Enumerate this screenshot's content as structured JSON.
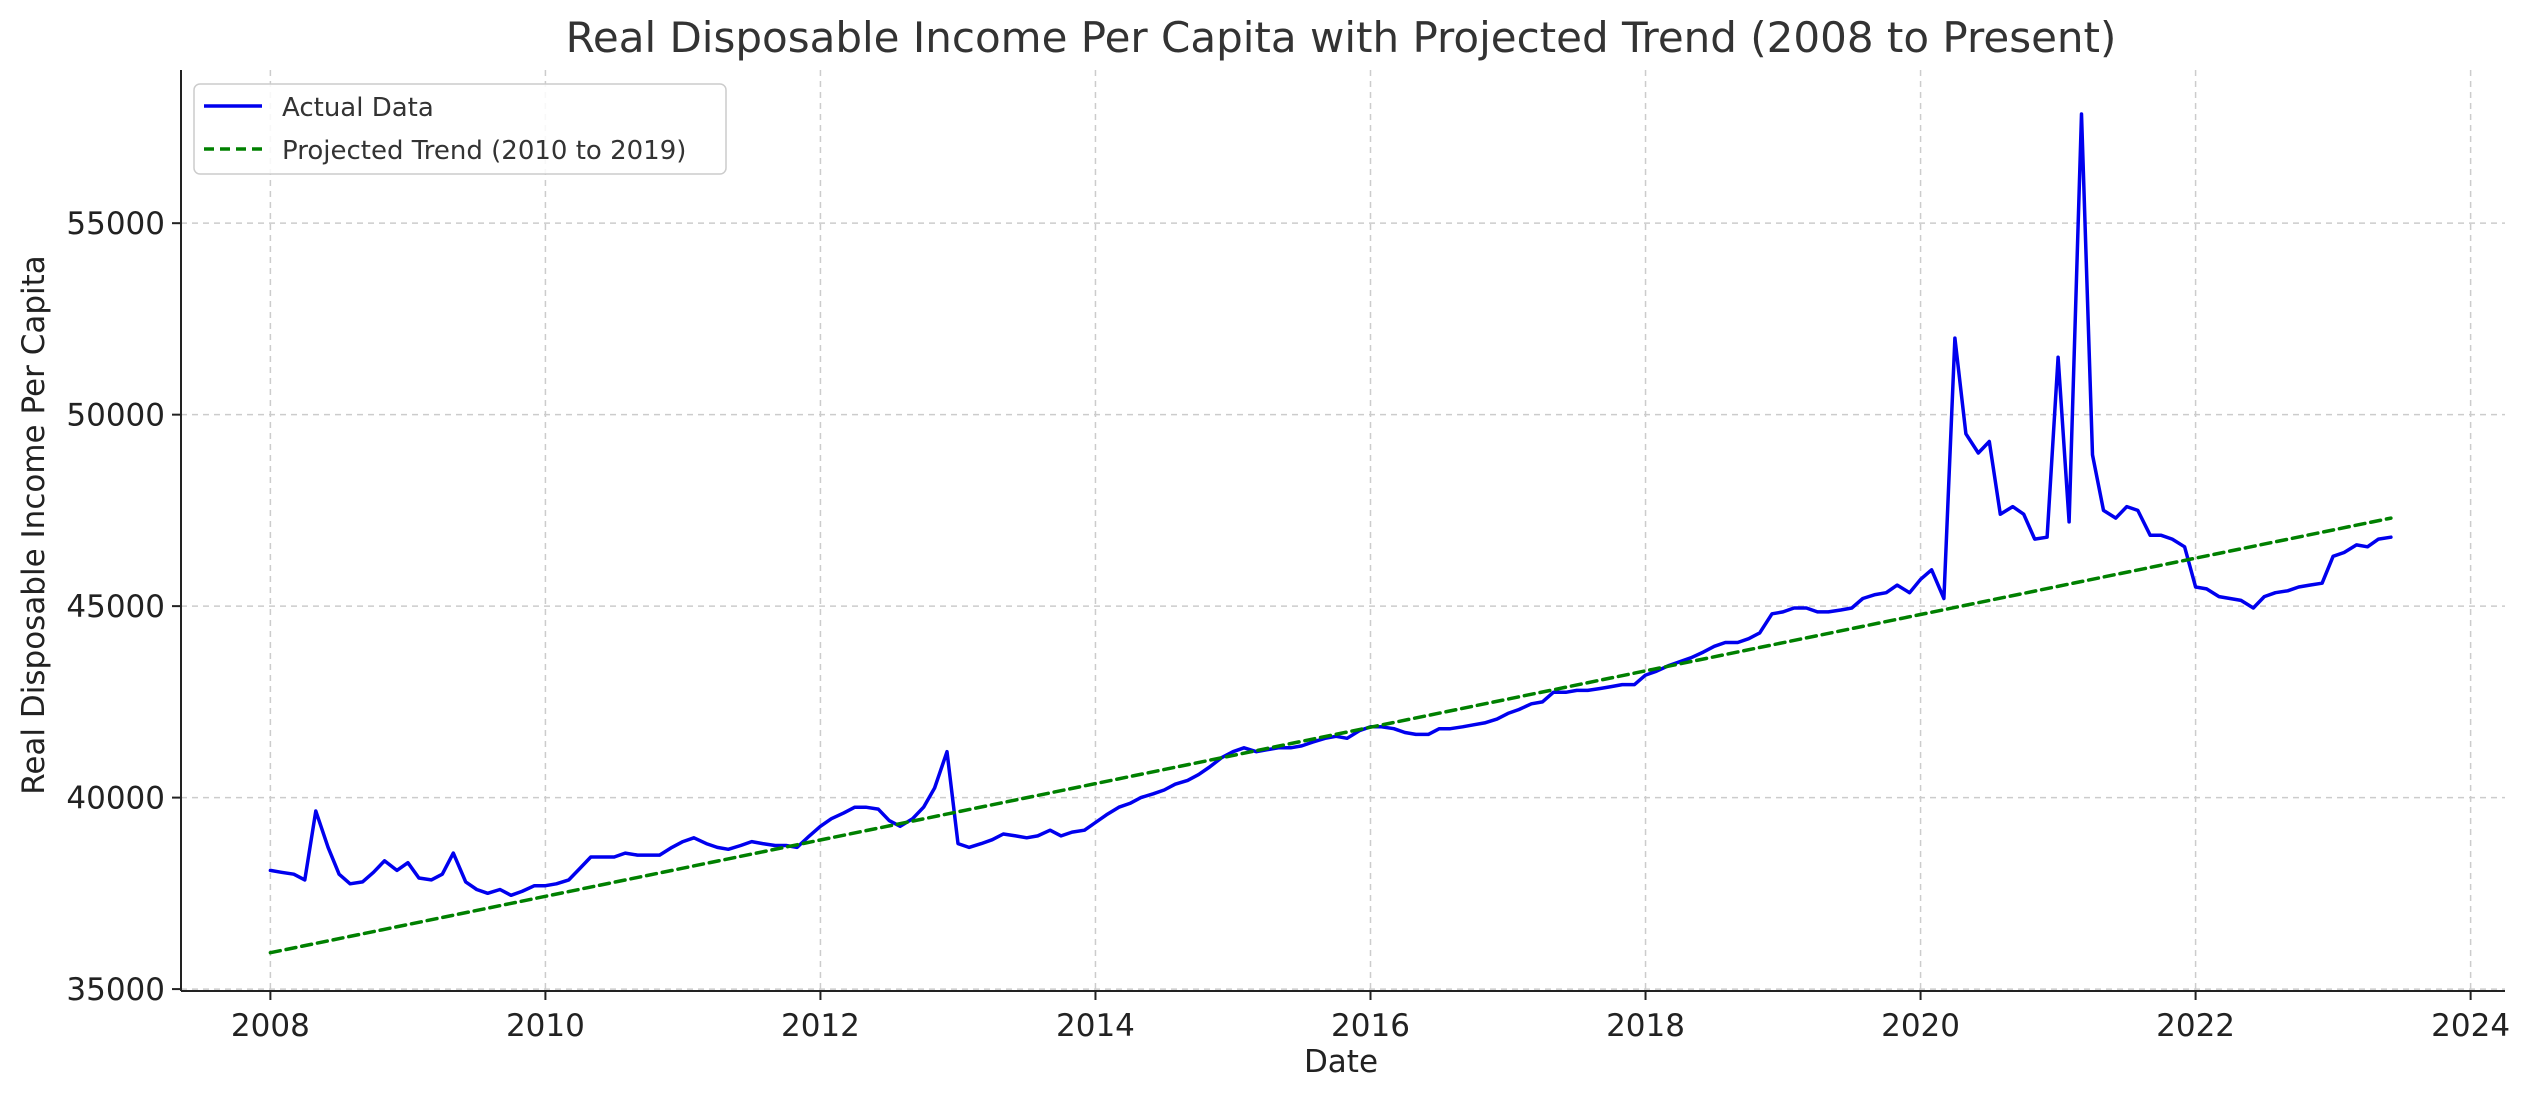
{
  "chart_data": {
    "type": "line",
    "title": "Real Disposable Income Per Capita with Projected Trend (2008 to Present)",
    "xlabel": "Date",
    "ylabel": "Real Disposable Income Per Capita",
    "xlim": [
      2007.35,
      2024.25
    ],
    "ylim": [
      34950,
      59000
    ],
    "x_ticks": [
      2008,
      2010,
      2012,
      2014,
      2016,
      2018,
      2020,
      2022,
      2024
    ],
    "y_ticks": [
      35000,
      40000,
      45000,
      50000,
      55000
    ],
    "grid": true,
    "legend_position": "top-left",
    "series": [
      {
        "name": "Actual Data",
        "style": "solid",
        "color": "#0000ee",
        "points": [
          [
            2008.0,
            38100
          ],
          [
            2008.08,
            38050
          ],
          [
            2008.17,
            38000
          ],
          [
            2008.25,
            37850
          ],
          [
            2008.33,
            39650
          ],
          [
            2008.42,
            38700
          ],
          [
            2008.5,
            38000
          ],
          [
            2008.58,
            37750
          ],
          [
            2008.67,
            37800
          ],
          [
            2008.75,
            38050
          ],
          [
            2008.83,
            38350
          ],
          [
            2008.92,
            38100
          ],
          [
            2009.0,
            38300
          ],
          [
            2009.08,
            37900
          ],
          [
            2009.17,
            37850
          ],
          [
            2009.25,
            38000
          ],
          [
            2009.33,
            38550
          ],
          [
            2009.42,
            37800
          ],
          [
            2009.5,
            37600
          ],
          [
            2009.58,
            37500
          ],
          [
            2009.67,
            37600
          ],
          [
            2009.75,
            37450
          ],
          [
            2009.83,
            37550
          ],
          [
            2009.92,
            37700
          ],
          [
            2010.0,
            37700
          ],
          [
            2010.08,
            37750
          ],
          [
            2010.17,
            37850
          ],
          [
            2010.25,
            38150
          ],
          [
            2010.33,
            38450
          ],
          [
            2010.42,
            38450
          ],
          [
            2010.5,
            38450
          ],
          [
            2010.58,
            38550
          ],
          [
            2010.67,
            38500
          ],
          [
            2010.75,
            38500
          ],
          [
            2010.83,
            38500
          ],
          [
            2010.92,
            38700
          ],
          [
            2011.0,
            38850
          ],
          [
            2011.08,
            38950
          ],
          [
            2011.17,
            38800
          ],
          [
            2011.25,
            38700
          ],
          [
            2011.33,
            38650
          ],
          [
            2011.42,
            38750
          ],
          [
            2011.5,
            38850
          ],
          [
            2011.58,
            38800
          ],
          [
            2011.67,
            38750
          ],
          [
            2011.75,
            38750
          ],
          [
            2011.83,
            38700
          ],
          [
            2011.92,
            39000
          ],
          [
            2012.0,
            39250
          ],
          [
            2012.08,
            39450
          ],
          [
            2012.17,
            39600
          ],
          [
            2012.25,
            39750
          ],
          [
            2012.33,
            39750
          ],
          [
            2012.42,
            39700
          ],
          [
            2012.5,
            39400
          ],
          [
            2012.58,
            39250
          ],
          [
            2012.67,
            39450
          ],
          [
            2012.75,
            39750
          ],
          [
            2012.83,
            40250
          ],
          [
            2012.92,
            41200
          ],
          [
            2013.0,
            38800
          ],
          [
            2013.08,
            38700
          ],
          [
            2013.17,
            38800
          ],
          [
            2013.25,
            38900
          ],
          [
            2013.33,
            39050
          ],
          [
            2013.42,
            39000
          ],
          [
            2013.5,
            38950
          ],
          [
            2013.58,
            39000
          ],
          [
            2013.67,
            39150
          ],
          [
            2013.75,
            39000
          ],
          [
            2013.83,
            39100
          ],
          [
            2013.92,
            39150
          ],
          [
            2014.0,
            39350
          ],
          [
            2014.08,
            39550
          ],
          [
            2014.17,
            39750
          ],
          [
            2014.25,
            39850
          ],
          [
            2014.33,
            40000
          ],
          [
            2014.42,
            40100
          ],
          [
            2014.5,
            40200
          ],
          [
            2014.58,
            40350
          ],
          [
            2014.67,
            40450
          ],
          [
            2014.75,
            40600
          ],
          [
            2014.83,
            40800
          ],
          [
            2014.92,
            41050
          ],
          [
            2015.0,
            41200
          ],
          [
            2015.08,
            41300
          ],
          [
            2015.17,
            41200
          ],
          [
            2015.25,
            41250
          ],
          [
            2015.33,
            41300
          ],
          [
            2015.42,
            41300
          ],
          [
            2015.5,
            41350
          ],
          [
            2015.58,
            41450
          ],
          [
            2015.67,
            41550
          ],
          [
            2015.75,
            41600
          ],
          [
            2015.83,
            41550
          ],
          [
            2015.92,
            41750
          ],
          [
            2016.0,
            41850
          ],
          [
            2016.08,
            41850
          ],
          [
            2016.17,
            41800
          ],
          [
            2016.25,
            41700
          ],
          [
            2016.33,
            41650
          ],
          [
            2016.42,
            41650
          ],
          [
            2016.5,
            41800
          ],
          [
            2016.58,
            41800
          ],
          [
            2016.67,
            41850
          ],
          [
            2016.75,
            41900
          ],
          [
            2016.83,
            41950
          ],
          [
            2016.92,
            42050
          ],
          [
            2017.0,
            42200
          ],
          [
            2017.08,
            42300
          ],
          [
            2017.17,
            42450
          ],
          [
            2017.25,
            42500
          ],
          [
            2017.33,
            42750
          ],
          [
            2017.42,
            42750
          ],
          [
            2017.5,
            42800
          ],
          [
            2017.58,
            42800
          ],
          [
            2017.67,
            42850
          ],
          [
            2017.75,
            42900
          ],
          [
            2017.83,
            42950
          ],
          [
            2017.92,
            42950
          ],
          [
            2018.0,
            43200
          ],
          [
            2018.08,
            43300
          ],
          [
            2018.17,
            43450
          ],
          [
            2018.25,
            43550
          ],
          [
            2018.33,
            43650
          ],
          [
            2018.42,
            43800
          ],
          [
            2018.5,
            43950
          ],
          [
            2018.58,
            44050
          ],
          [
            2018.67,
            44050
          ],
          [
            2018.75,
            44150
          ],
          [
            2018.83,
            44300
          ],
          [
            2018.92,
            44800
          ],
          [
            2019.0,
            44850
          ],
          [
            2019.08,
            44950
          ],
          [
            2019.17,
            44950
          ],
          [
            2019.25,
            44850
          ],
          [
            2019.33,
            44850
          ],
          [
            2019.42,
            44900
          ],
          [
            2019.5,
            44950
          ],
          [
            2019.58,
            45200
          ],
          [
            2019.67,
            45300
          ],
          [
            2019.75,
            45350
          ],
          [
            2019.83,
            45550
          ],
          [
            2019.92,
            45350
          ],
          [
            2020.0,
            45700
          ],
          [
            2020.08,
            45950
          ],
          [
            2020.17,
            45200
          ],
          [
            2020.25,
            52000
          ],
          [
            2020.33,
            49500
          ],
          [
            2020.42,
            49000
          ],
          [
            2020.5,
            49300
          ],
          [
            2020.58,
            47400
          ],
          [
            2020.67,
            47600
          ],
          [
            2020.75,
            47400
          ],
          [
            2020.83,
            46750
          ],
          [
            2020.92,
            46800
          ],
          [
            2021.0,
            51500
          ],
          [
            2021.08,
            47200
          ],
          [
            2021.17,
            57850
          ],
          [
            2021.25,
            48950
          ],
          [
            2021.33,
            47500
          ],
          [
            2021.42,
            47300
          ],
          [
            2021.5,
            47600
          ],
          [
            2021.58,
            47500
          ],
          [
            2021.67,
            46850
          ],
          [
            2021.75,
            46850
          ],
          [
            2021.83,
            46750
          ],
          [
            2021.92,
            46550
          ],
          [
            2022.0,
            45500
          ],
          [
            2022.08,
            45450
          ],
          [
            2022.17,
            45250
          ],
          [
            2022.25,
            45200
          ],
          [
            2022.33,
            45150
          ],
          [
            2022.42,
            44950
          ],
          [
            2022.5,
            45250
          ],
          [
            2022.58,
            45350
          ],
          [
            2022.67,
            45400
          ],
          [
            2022.75,
            45500
          ],
          [
            2022.83,
            45550
          ],
          [
            2022.92,
            45600
          ],
          [
            2023.0,
            46300
          ],
          [
            2023.08,
            46400
          ],
          [
            2023.17,
            46600
          ],
          [
            2023.25,
            46550
          ],
          [
            2023.33,
            46750
          ],
          [
            2023.42,
            46800
          ]
        ]
      },
      {
        "name": "Projected Trend (2010 to 2019)",
        "style": "dashed",
        "color": "#008000",
        "points": [
          [
            2008.0,
            35950
          ],
          [
            2023.42,
            47300
          ]
        ]
      }
    ]
  }
}
